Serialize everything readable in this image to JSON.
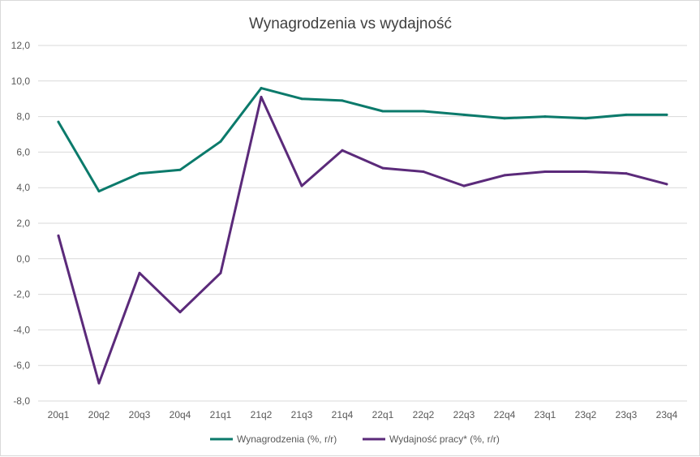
{
  "chart_data": {
    "type": "line",
    "title": "Wynagrodzenia vs wydajność",
    "categories": [
      "20q1",
      "20q2",
      "20q3",
      "20q4",
      "21q1",
      "21q2",
      "21q3",
      "21q4",
      "22q1",
      "22q2",
      "22q3",
      "22q4",
      "23q1",
      "23q2",
      "23q3",
      "23q4"
    ],
    "ylim": [
      -8,
      12
    ],
    "ytick_values": [
      -8,
      -6,
      -4,
      -2,
      0,
      2,
      4,
      6,
      8,
      10,
      12
    ],
    "ytick_labels": [
      "-8,0",
      "-6,0",
      "-4,0",
      "-2,0",
      "0,0",
      "2,0",
      "4,0",
      "6,0",
      "8,0",
      "10,0",
      "12,0"
    ],
    "grid": true,
    "legend_position": "bottom",
    "series": [
      {
        "name": "Wynagrodzenia (%, r/r)",
        "color": "#0b7a6b",
        "values": [
          7.7,
          3.8,
          4.8,
          5.0,
          6.6,
          9.6,
          9.0,
          8.9,
          8.3,
          8.3,
          8.1,
          7.9,
          8.0,
          7.9,
          8.1,
          8.1
        ]
      },
      {
        "name": "Wydajność pracy* (%, r/r)",
        "color": "#5b2a7a",
        "values": [
          1.3,
          -7.0,
          -0.8,
          -3.0,
          -0.8,
          9.1,
          4.1,
          6.1,
          5.1,
          4.9,
          4.1,
          4.7,
          4.9,
          4.9,
          4.8,
          4.2
        ]
      }
    ]
  }
}
